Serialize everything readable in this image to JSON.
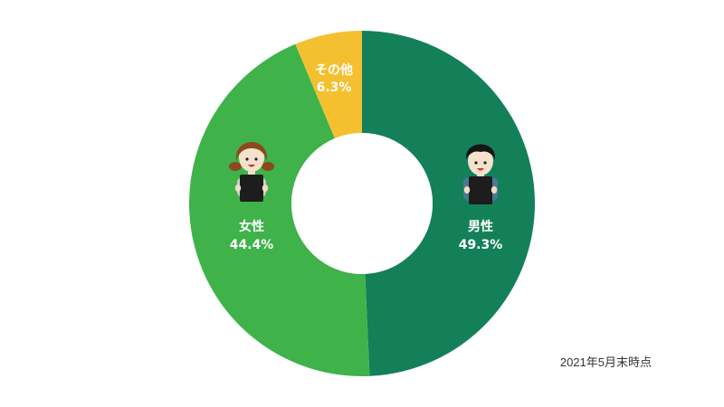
{
  "chart_data": {
    "type": "pie",
    "style": "donut",
    "slices": [
      {
        "label": "男性",
        "value": 49.3,
        "value_label": "49.3%",
        "color": "#138059",
        "icon": "boy-holding-tablet-icon"
      },
      {
        "label": "女性",
        "value": 44.4,
        "value_label": "44.4%",
        "color": "#3fb24a",
        "icon": "girl-holding-tablet-icon"
      },
      {
        "label": "その他",
        "value": 6.3,
        "value_label": "6.3%",
        "color": "#f4c030"
      }
    ]
  },
  "note": "2021年5月末時点"
}
